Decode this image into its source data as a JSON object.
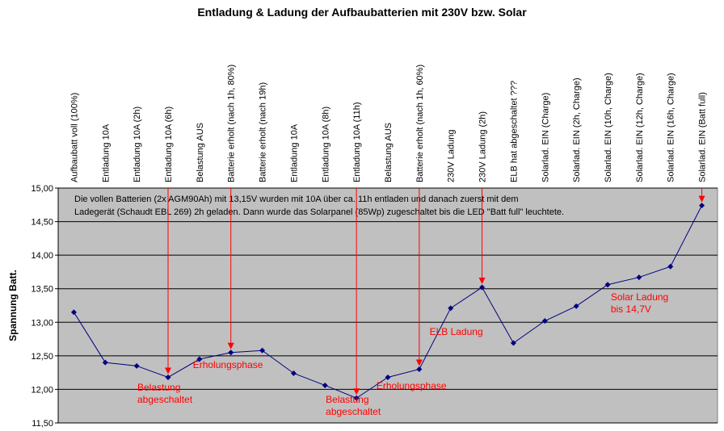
{
  "chart_data": {
    "type": "line",
    "title": "Entladung & Ladung der Aufbaubatterien mit 230V bzw. Solar",
    "ylabel": "Spannung Batt.",
    "xlabel": "",
    "ylim": [
      11.5,
      15.0
    ],
    "yticks": [
      "11,50",
      "12,00",
      "12,50",
      "13,00",
      "13,50",
      "14,00",
      "14,50",
      "15,00"
    ],
    "grid": true,
    "background_color": "#c0c0c0",
    "line_color": "#000080",
    "annotation_color": "#ff0000",
    "categories": [
      "Aufbaubatt voll (100%)",
      "Entladung 10A",
      "Entladung 10A (2h)",
      "Entladung 10A (6h)",
      "Belastung AUS",
      "Batterie erholt (nach 1h, 80%)",
      "Batterie erholt (nach 19h)",
      "Entladung 10A",
      "Entladung 10A (8h)",
      "Entladung 10A (11h)",
      "Belastung AUS",
      "Batterie erholt (nach 1h, 60%)",
      "230V Ladung",
      "230V Ladung (2h)",
      "ELB hat abgeschaltet ???",
      "Solarlad. EIN (Charge)",
      "Solarlad. EIN (2h, Charge)",
      "Solarlad. EIN (10h, Charge)",
      "Solarlad. EIN (12h, Charge)",
      "Solarlad. EIN (16h, Charge)",
      "Solarlad. EIN (Batt full)"
    ],
    "series": [
      {
        "values": [
          13.15,
          12.4,
          12.35,
          12.18,
          12.45,
          12.55,
          12.58,
          12.24,
          12.06,
          11.87,
          12.18,
          12.3,
          13.21,
          13.52,
          12.69,
          13.02,
          13.24,
          13.56,
          13.67,
          13.83,
          14.74
        ]
      }
    ],
    "note_lines": [
      "Die vollen Batterien (2x AGM90Ah) mit 13,15V wurden mit 10A über ca. 11h entladen und danach zuerst mit dem",
      "Ladegerät (Schaudt EBL 269) 2h geladen. Dann wurde das Solarpanel (85Wp) zugeschaltet bis die LED \"Batt full\" leuchtete."
    ],
    "arrows": [
      {
        "category_index": 3,
        "from_y": 15.0
      },
      {
        "category_index": 5,
        "from_y": 15.0
      },
      {
        "category_index": 9,
        "from_y": 15.0
      },
      {
        "category_index": 11,
        "from_y": 15.0
      },
      {
        "category_index": 13,
        "from_y": 15.0
      },
      {
        "category_index": 20,
        "from_y": 15.0
      }
    ],
    "annotations": [
      {
        "lines": [
          "Belastung",
          "abgeschaltet"
        ],
        "category_index": 3
      },
      {
        "lines": [
          "Erholungsphase"
        ],
        "category_index": 5
      },
      {
        "lines": [
          "Belastung",
          "abgeschaltet"
        ],
        "category_index": 9
      },
      {
        "lines": [
          "Erholungsphase"
        ],
        "category_index": 11
      },
      {
        "lines": [
          "ELB Ladung"
        ],
        "category_index": 13
      },
      {
        "lines": [
          "Solar Ladung",
          "bis 14,7V"
        ],
        "category_index": 18
      }
    ]
  }
}
